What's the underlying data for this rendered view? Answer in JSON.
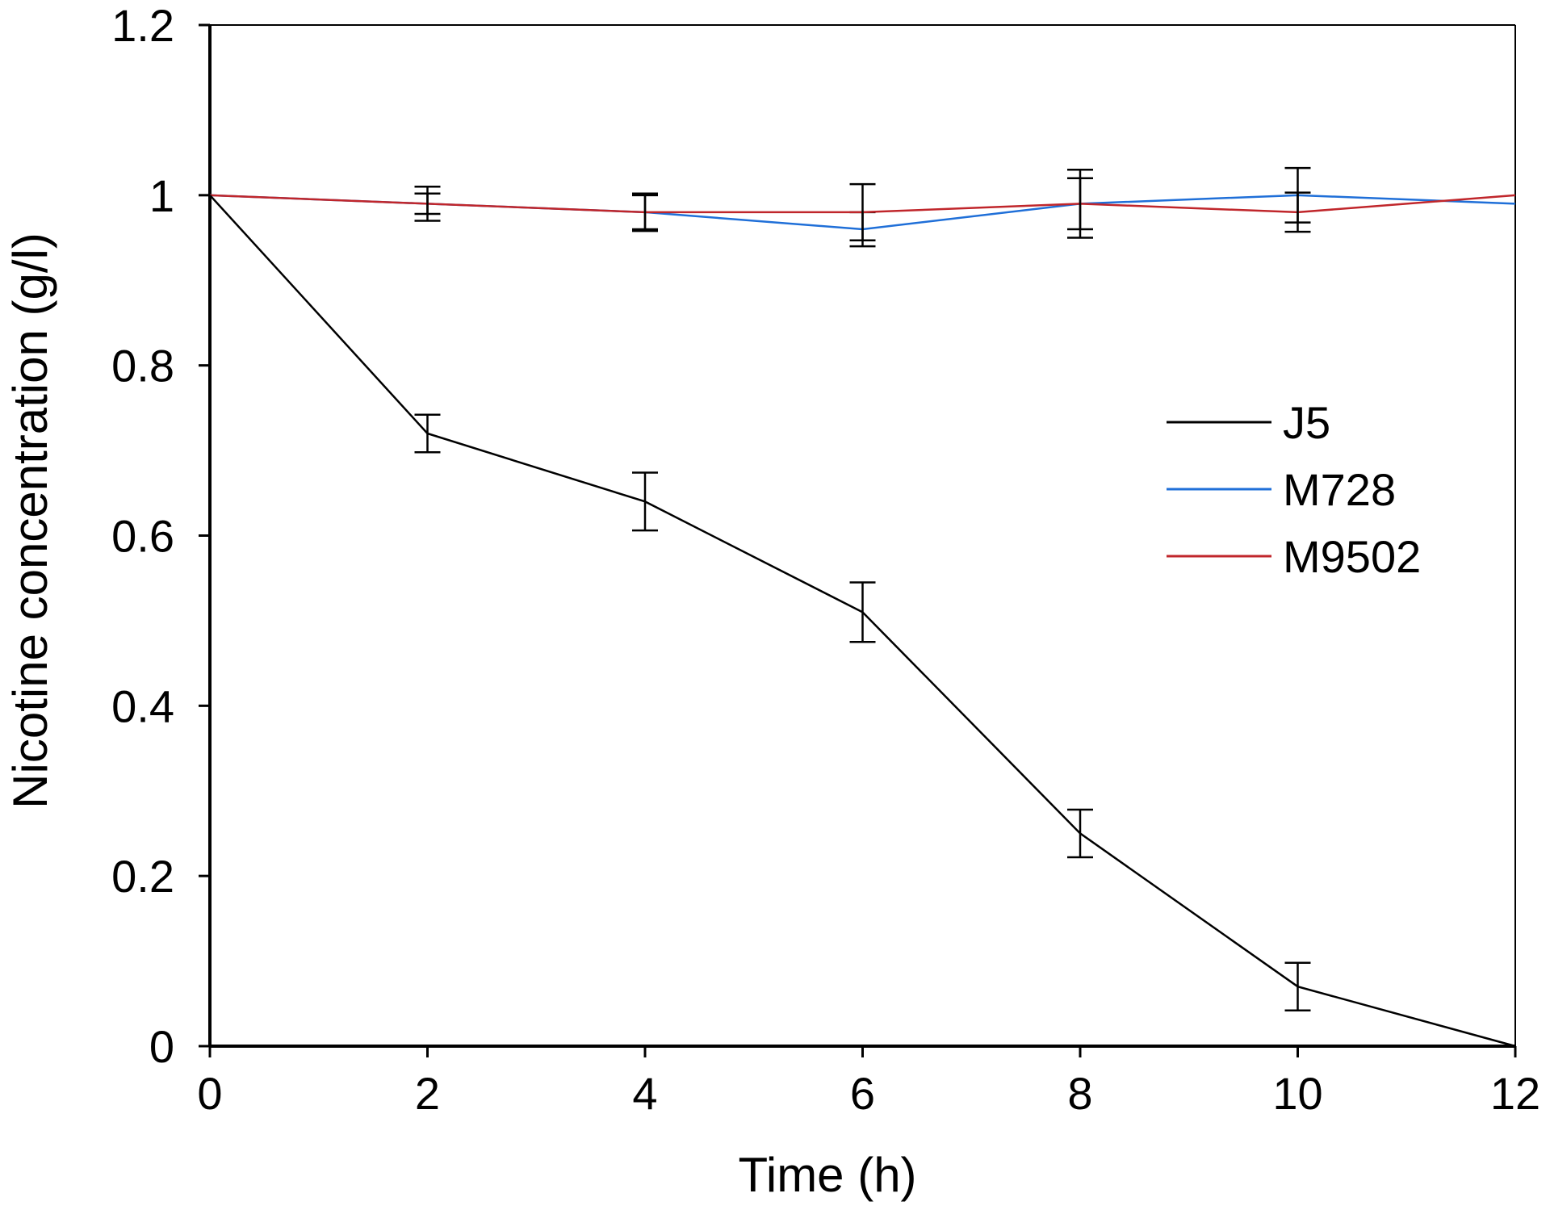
{
  "chart_data": {
    "type": "line",
    "title": "",
    "xlabel": "Time (h)",
    "ylabel": "Nicotine concentration (g/l)",
    "xlim": [
      0,
      12
    ],
    "ylim": [
      0,
      1.2
    ],
    "x_ticks": [
      0,
      2,
      4,
      6,
      8,
      10,
      12
    ],
    "x_tick_labels": [
      "0",
      "2",
      "4",
      "6",
      "8",
      "10",
      "12"
    ],
    "y_ticks": [
      0,
      0.2,
      0.4,
      0.6,
      0.8,
      1.0,
      1.2
    ],
    "y_tick_labels": [
      "0",
      "0.2",
      "0.4",
      "0.6",
      "0.8",
      "1",
      "1.2"
    ],
    "grid": false,
    "legend_position": "right",
    "x": [
      0,
      2,
      4,
      6,
      8,
      10,
      12
    ],
    "series": [
      {
        "name": "J5",
        "color": "#000000",
        "values": [
          1.0,
          0.72,
          0.64,
          0.51,
          0.25,
          0.07,
          0.0
        ],
        "errors": [
          0,
          0.022,
          0.034,
          0.035,
          0.028,
          0.028,
          0
        ]
      },
      {
        "name": "M728",
        "color": "#1f6fd8",
        "values": [
          1.0,
          0.99,
          0.98,
          0.96,
          0.99,
          1.0,
          0.99
        ],
        "errors": [
          0,
          0.02,
          0.022,
          0.02,
          0.04,
          0.032,
          0
        ]
      },
      {
        "name": "M9502",
        "color": "#c0262b",
        "values": [
          1.0,
          0.99,
          0.98,
          0.98,
          0.99,
          0.98,
          1.0
        ],
        "errors": [
          0,
          0.012,
          0.02,
          0.033,
          0.03,
          0.023,
          0
        ]
      }
    ]
  }
}
